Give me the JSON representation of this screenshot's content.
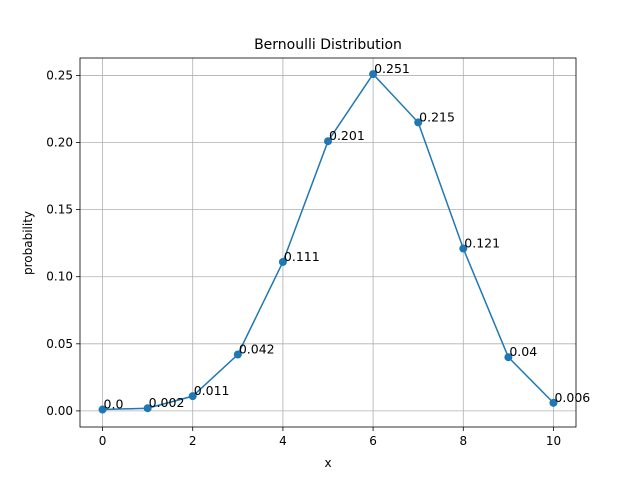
{
  "chart_data": {
    "type": "line",
    "title": "Bernoulli Distribution",
    "xlabel": "x",
    "ylabel": "probability",
    "x": [
      0,
      1,
      2,
      3,
      4,
      5,
      6,
      7,
      8,
      9,
      10
    ],
    "y": [
      0.001,
      0.002,
      0.011,
      0.042,
      0.111,
      0.201,
      0.251,
      0.215,
      0.121,
      0.04,
      0.006
    ],
    "point_labels": [
      "0.0",
      "0.002",
      "0.011",
      "0.042",
      "0.111",
      "0.201",
      "0.251",
      "0.215",
      "0.121",
      "0.04",
      "0.006"
    ],
    "xlim": [
      -0.5,
      10.5
    ],
    "ylim": [
      -0.012,
      0.263
    ],
    "xticks": [
      0,
      2,
      4,
      6,
      8,
      10
    ],
    "xtick_labels": [
      "0",
      "2",
      "4",
      "6",
      "8",
      "10"
    ],
    "yticks": [
      0.0,
      0.05,
      0.1,
      0.15,
      0.2,
      0.25
    ],
    "ytick_labels": [
      "0.00",
      "0.05",
      "0.10",
      "0.15",
      "0.20",
      "0.25"
    ],
    "grid": true,
    "marker": "circle",
    "colors": {
      "series": "#1f77b4",
      "grid": "#b0b0b0",
      "axis": "#000000",
      "background": "#ffffff"
    }
  }
}
